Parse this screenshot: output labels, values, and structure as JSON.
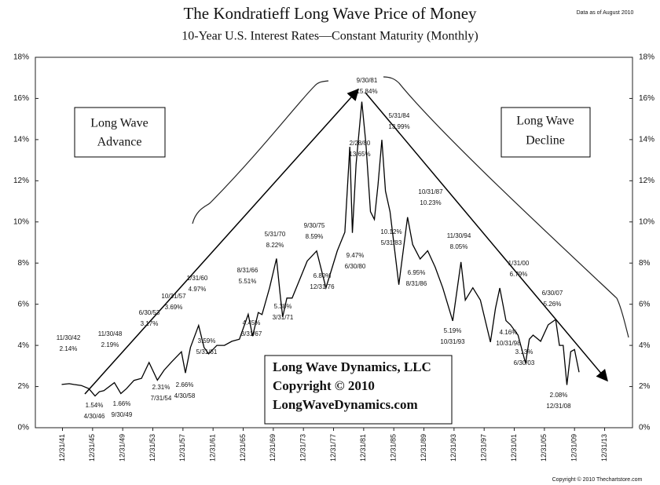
{
  "chart_data": {
    "type": "line",
    "title": "The Kondratieff Long Wave Price of Money",
    "subtitle": "10-Year U.S. Interest Rates—Constant Maturity (Monthly)",
    "note": "Data as of August 2010",
    "copyright": "Copyright © 2010 Thechartstore.com",
    "boxes": {
      "advance": [
        "Long Wave",
        "Advance"
      ],
      "decline": [
        "Long Wave",
        "Decline"
      ],
      "company": [
        "Long Wave Dynamics, LLC",
        "Copyright © 2010",
        "LongWaveDynamics.com"
      ]
    },
    "xlim": [
      1938.4,
      2017.7
    ],
    "xticks": [
      {
        "value": 1942,
        "label": "12/31/41"
      },
      {
        "value": 1946,
        "label": "12/31/45"
      },
      {
        "value": 1950,
        "label": "12/31/49"
      },
      {
        "value": 1954,
        "label": "12/31/53"
      },
      {
        "value": 1958,
        "label": "12/31/57"
      },
      {
        "value": 1962,
        "label": "12/31/61"
      },
      {
        "value": 1966,
        "label": "12/31/65"
      },
      {
        "value": 1970,
        "label": "12/31/69"
      },
      {
        "value": 1974,
        "label": "12/31/73"
      },
      {
        "value": 1978,
        "label": "12/31/77"
      },
      {
        "value": 1982,
        "label": "12/31/81"
      },
      {
        "value": 1986,
        "label": "12/31/85"
      },
      {
        "value": 1990,
        "label": "12/31/89"
      },
      {
        "value": 1994,
        "label": "12/31/93"
      },
      {
        "value": 1998,
        "label": "12/31/97"
      },
      {
        "value": 2002,
        "label": "12/31/01"
      },
      {
        "value": 2006,
        "label": "12/31/05"
      },
      {
        "value": 2010,
        "label": "12/31/09"
      },
      {
        "value": 2014,
        "label": "12/31/13"
      }
    ],
    "ylim": [
      0,
      18
    ],
    "yticks": [
      {
        "value": 0,
        "label": "0%"
      },
      {
        "value": 2,
        "label": "2%"
      },
      {
        "value": 4,
        "label": "4%"
      },
      {
        "value": 6,
        "label": "6%"
      },
      {
        "value": 8,
        "label": "8%"
      },
      {
        "value": 10,
        "label": "10%"
      },
      {
        "value": 12,
        "label": "12%"
      },
      {
        "value": 14,
        "label": "14%"
      },
      {
        "value": 16,
        "label": "16%"
      },
      {
        "value": 18,
        "label": "18%"
      }
    ],
    "grid": false,
    "series": [
      {
        "color": "#000000",
        "x": [
          1941.9,
          1942.9,
          1943.5,
          1944.5,
          1945.5,
          1946.33,
          1946.9,
          1947.5,
          1948.9,
          1949.75,
          1950.5,
          1951.5,
          1952.5,
          1953.5,
          1954.6,
          1955.5,
          1956.5,
          1957.8,
          1958.33,
          1959.0,
          1960.08,
          1960.8,
          1961.42,
          1962.5,
          1963.5,
          1964.5,
          1965.5,
          1966.67,
          1967.25,
          1968.0,
          1968.5,
          1969.5,
          1970.42,
          1970.9,
          1971.25,
          1971.8,
          1972.5,
          1973.5,
          1974.5,
          1975.75,
          1976.99,
          1977.5,
          1978.5,
          1979.5,
          1980.16,
          1980.5,
          1980.99,
          1981.75,
          1982.3,
          1982.9,
          1983.42,
          1983.9,
          1984.42,
          1984.9,
          1985.5,
          1986.67,
          1987.83,
          1988.5,
          1989.5,
          1990.5,
          1991.5,
          1992.5,
          1993.83,
          1994.92,
          1995.5,
          1996.5,
          1997.5,
          1998.83,
          1999.5,
          2000.08,
          2000.9,
          2001.5,
          2002.5,
          2003.5,
          2004.0,
          2004.5,
          2005.5,
          2006.5,
          2007.5,
          2008.0,
          2008.5,
          2008.99,
          2009.5,
          2010.0,
          2010.6
        ],
        "values": [
          2.1,
          2.14,
          2.1,
          2.05,
          1.9,
          1.54,
          1.75,
          1.8,
          2.19,
          1.66,
          1.9,
          2.3,
          2.4,
          3.17,
          2.31,
          2.8,
          3.2,
          3.69,
          2.66,
          3.9,
          4.97,
          3.9,
          3.59,
          4.0,
          4.0,
          4.2,
          4.3,
          5.51,
          4.45,
          5.6,
          5.5,
          6.8,
          8.22,
          6.5,
          5.38,
          6.3,
          6.3,
          7.2,
          8.1,
          8.59,
          6.8,
          7.4,
          8.6,
          9.5,
          13.65,
          9.47,
          12.8,
          15.84,
          13.8,
          10.5,
          10.12,
          11.8,
          13.99,
          11.5,
          10.5,
          6.95,
          10.23,
          8.9,
          8.2,
          8.6,
          7.8,
          6.8,
          5.19,
          8.05,
          6.2,
          6.8,
          6.2,
          4.16,
          5.8,
          6.79,
          5.2,
          5.0,
          4.5,
          3.13,
          4.3,
          4.5,
          4.2,
          5.0,
          5.26,
          4.0,
          4.0,
          2.08,
          3.7,
          3.8,
          2.7
        ]
      }
    ],
    "annotations": [
      [
        "11/30/42",
        "2.14%"
      ],
      [
        "1.54%",
        "4/30/46"
      ],
      [
        "11/30/48",
        "2.19%"
      ],
      [
        "1.66%",
        "9/30/49"
      ],
      [
        "6/30/53",
        "3.17%"
      ],
      [
        "2.31%",
        "7/31/54"
      ],
      [
        "10/31/57",
        "3.69%"
      ],
      [
        "2.66%",
        "4/30/58"
      ],
      [
        "1/31/60",
        "4.97%"
      ],
      [
        "3.59%",
        "5/31/61"
      ],
      [
        "8/31/66",
        "5.51%"
      ],
      [
        "4.45%",
        "3/31/67"
      ],
      [
        "5/31/70",
        "8.22%"
      ],
      [
        "5.38%",
        "3/31/71"
      ],
      [
        "9/30/75",
        "8.59%"
      ],
      [
        "6.80%",
        "12/31/76"
      ],
      [
        "2/28/80",
        "13.65%"
      ],
      [
        "9.47%",
        "6/30/80"
      ],
      [
        "9/30/81",
        "15.84%"
      ],
      [
        "5/31/84",
        "13.99%"
      ],
      [
        "10.12%",
        "5/31/83"
      ],
      [
        "10/31/87",
        "10.23%"
      ],
      [
        "6.95%",
        "8/31/86"
      ],
      [
        "11/30/94",
        "8.05%"
      ],
      [
        "5.19%",
        "10/31/93"
      ],
      [
        "1/31/00",
        "6.79%"
      ],
      [
        "4.16%",
        "10/31/98"
      ],
      [
        "3.13%",
        "6/30/03"
      ],
      [
        "6/30/07",
        "5.26%"
      ],
      [
        "2.08%",
        "12/31/08"
      ]
    ]
  }
}
